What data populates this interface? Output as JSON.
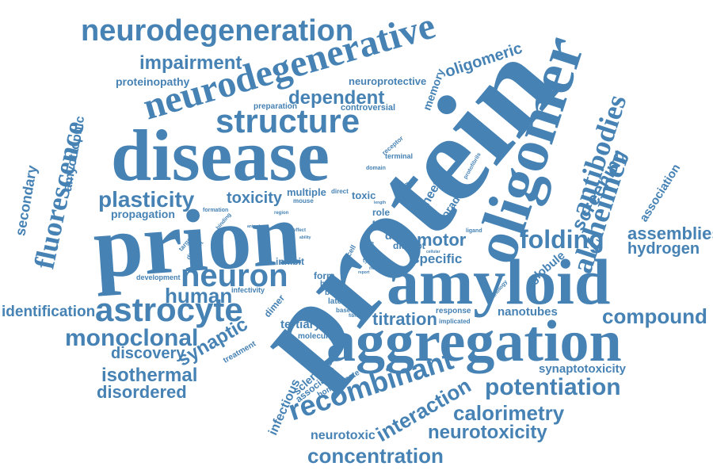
{
  "colors": {
    "word": "#4682b4",
    "background": "#ffffff"
  },
  "words": {
    "protein": "protein",
    "prion": "prion",
    "disease": "disease",
    "oligomer": "oligomer",
    "amyloid": "amyloid",
    "aggregation": "aggregation",
    "neurodegenerative": "neurodegenerative",
    "neurodegeneration": "neurodegeneration",
    "structure": "structure",
    "astrocyte": "astrocyte",
    "recombinant": "recombinant",
    "neuron": "neuron",
    "alzheimer": "alzheimer",
    "antibodies": "antibodies",
    "fluorescence": "fluorescence",
    "impairment": "impairment",
    "plasticity": "plasticity",
    "folding": "folding",
    "monoclonal": "monoclonal",
    "potentiation": "potentiation",
    "concentration": "concentration",
    "neurotoxicity": "neurotoxicity",
    "calorimetry": "calorimetry",
    "isothermal": "isothermal",
    "disordered": "disordered",
    "compound": "compound",
    "assemblies": "assemblies",
    "hydrogen": "hydrogen",
    "human": "human",
    "interaction": "interaction",
    "dependent": "dependent",
    "screening": "screening",
    "synaptic": "synaptic",
    "discovery": "discovery",
    "identification": "identification",
    "titration": "titration",
    "motor": "motor",
    "toxicity": "toxicity",
    "secondary": "secondary",
    "amyotrophic": "amyotrophic",
    "oligomeric": "oligomeric",
    "proteinopathy": "proteinopathy",
    "synaptotoxicity": "synaptotoxicity",
    "nanotubes": "nanotubes",
    "neurotoxic": "neurotoxic",
    "propagation": "propagation",
    "association": "association",
    "globule": "globule",
    "tertiary": "tertiary",
    "specific": "specific",
    "infectious": "infectious",
    "sclerosis": "sclerosis",
    "associated": "associated",
    "homogenate": "homogenate",
    "sporadic": "sporadic",
    "sheet": "sheet",
    "memory": "memory",
    "neuroprotective": "neuroprotective",
    "controversial": "controversial",
    "preparation": "preparation",
    "multiple": "multiple",
    "toxic": "toxic",
    "role": "role",
    "term": "term",
    "drug": "drug",
    "disrupt": "disrupt",
    "inhibit": "inhibit",
    "form": "form",
    "brain": "brain",
    "block": "block",
    "lateral": "lateral",
    "based": "based",
    "dimer": "dimer",
    "molecule": "molecule",
    "infectivity": "infectivity",
    "development": "development",
    "treatment": "treatment",
    "response": "response",
    "implicated": "implicated",
    "receptor": "receptor",
    "terminal": "terminal",
    "domain": "domain",
    "model": "model",
    "direct": "direct",
    "mouse": "mouse",
    "formation": "formation",
    "region": "region",
    "binding": "binding",
    "targeted": "targeted",
    "distinct": "distinct",
    "cell": "cell",
    "prpc": "prpc",
    "type": "type",
    "novel": "novel",
    "site": "site",
    "ligand": "ligand",
    "pathology": "pathology",
    "protofibrils": "protofibrils",
    "extract": "extract",
    "fibrillar": "fibrillar",
    "effect": "effect",
    "ability": "ability",
    "animal": "animal",
    "length": "length",
    "cellular": "cellular",
    "report": "report"
  }
}
